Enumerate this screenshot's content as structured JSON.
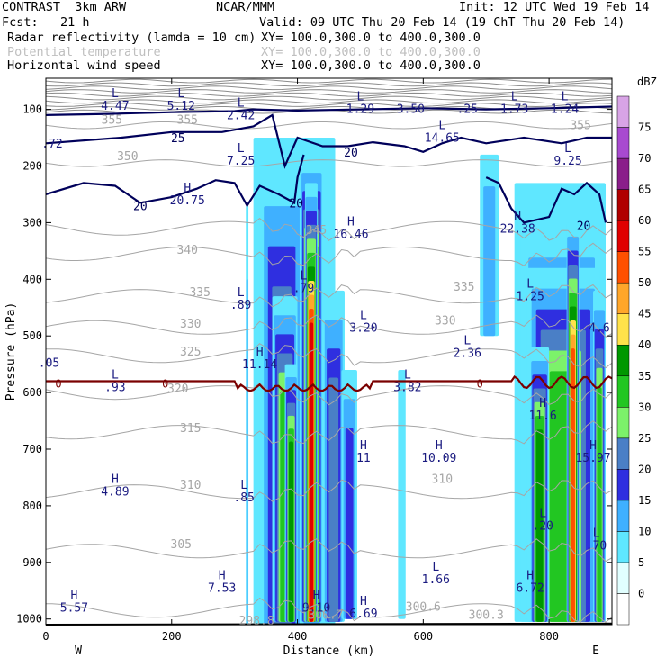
{
  "header": {
    "model": "CONTRAST  3km ARW",
    "org": "NCAR/MMM",
    "init": "Init: 12 UTC Wed 19 Feb 14",
    "fcst": "Fcst:   21 h",
    "valid": "Valid: 09 UTC Thu 20 Feb 14 (19 ChT Thu 20 Feb 14)",
    "field1": "Radar reflectivity (lamda = 10 cm)",
    "field1_xy": "XY= 100.0,300.0 to 400.0,300.0",
    "field2": "Potential temperature",
    "field2_xy": "XY= 100.0,300.0 to 400.0,300.0",
    "field3": "Horizontal wind speed",
    "field3_xy": "XY= 100.0,300.0 to 400.0,300.0"
  },
  "colors": {
    "wind_contour": "#00005a",
    "theta_contour": "#a6a6a6",
    "zero_line": "#7a0000",
    "ground": "#000000"
  },
  "chart_data": {
    "type": "heatmap",
    "xlabel": "Distance (km)",
    "ylabel": "Pressure (hPa)",
    "xlim": [
      0,
      900
    ],
    "ylim": [
      1010,
      45
    ],
    "x_ticks": [
      0,
      200,
      400,
      600,
      800
    ],
    "y_ticks": [
      100,
      200,
      300,
      400,
      500,
      600,
      700,
      800,
      900,
      1000
    ],
    "x_end_labels": {
      "left": "W",
      "right": "E"
    },
    "colorbar": {
      "unit": "dBZ",
      "levels": [
        0,
        5,
        10,
        15,
        20,
        25,
        30,
        35,
        40,
        45,
        50,
        55,
        60,
        65,
        70,
        75
      ],
      "colors": [
        "#ffffff",
        "#e1ffff",
        "#5fe7ff",
        "#3fb0ff",
        "#2f2fe0",
        "#4a7fc6",
        "#7cf26a",
        "#22c622",
        "#009800",
        "#ffe24a",
        "#ffa62a",
        "#ff5000",
        "#e00000",
        "#b00000",
        "#8a1e8a",
        "#a84ad0",
        "#d8a4e6"
      ]
    },
    "cells": [
      {
        "x": [
          318,
          322
        ],
        "p": [
          270,
          1010
        ],
        "dbz": 10
      },
      {
        "x": [
          330,
          460
        ],
        "p": [
          150,
          1010
        ],
        "dbz": 10
      },
      {
        "x": [
          340,
          410
        ],
        "p": [
          200,
          1010
        ],
        "dbz": 20
      },
      {
        "x": [
          360,
          400
        ],
        "p": [
          430,
          1005
        ],
        "dbz": 30
      },
      {
        "x": [
          380,
          400
        ],
        "p": [
          550,
          1005
        ],
        "dbz": 35
      },
      {
        "x": [
          405,
          440
        ],
        "p": [
          180,
          1005
        ],
        "dbz": 45
      },
      {
        "x": [
          412,
          432
        ],
        "p": [
          230,
          1005
        ],
        "dbz": 55
      },
      {
        "x": [
          440,
          475
        ],
        "p": [
          420,
          1005
        ],
        "dbz": 20
      },
      {
        "x": [
          470,
          495
        ],
        "p": [
          560,
          1000
        ],
        "dbz": 15
      },
      {
        "x": [
          560,
          572
        ],
        "p": [
          560,
          1000
        ],
        "dbz": 5
      },
      {
        "x": [
          690,
          720
        ],
        "p": [
          180,
          500
        ],
        "dbz": 10
      },
      {
        "x": [
          745,
          890
        ],
        "p": [
          230,
          1005
        ],
        "dbz": 10
      },
      {
        "x": [
          755,
          885
        ],
        "p": [
          300,
          1005
        ],
        "dbz": 20
      },
      {
        "x": [
          765,
          880
        ],
        "p": [
          380,
          1005
        ],
        "dbz": 30
      },
      {
        "x": [
          770,
          800
        ],
        "p": [
          520,
          1005
        ],
        "dbz": 35
      },
      {
        "x": [
          828,
          848
        ],
        "p": [
          300,
          1005
        ],
        "dbz": 50
      },
      {
        "x": [
          870,
          890
        ],
        "p": [
          420,
          1005
        ],
        "dbz": 30
      }
    ],
    "theta_contours": {
      "levels": [
        300,
        305,
        310,
        315,
        320,
        325,
        330,
        335,
        340,
        345,
        350,
        355
      ],
      "labels": [
        {
          "text": "300.6",
          "x": 600,
          "p": 985
        },
        {
          "text": "300.3",
          "x": 700,
          "p": 1000
        },
        {
          "text": "298.8",
          "x": 335,
          "p": 1010
        },
        {
          "text": "300.7",
          "x": 445,
          "p": 1000
        },
        {
          "text": "305",
          "x": 215,
          "p": 875
        },
        {
          "text": "310",
          "x": 230,
          "p": 770
        },
        {
          "text": "310",
          "x": 630,
          "p": 760
        },
        {
          "text": "315",
          "x": 230,
          "p": 670
        },
        {
          "text": "320",
          "x": 210,
          "p": 600
        },
        {
          "text": "325",
          "x": 230,
          "p": 535
        },
        {
          "text": "330",
          "x": 230,
          "p": 485
        },
        {
          "text": "330",
          "x": 635,
          "p": 480
        },
        {
          "text": "335",
          "x": 245,
          "p": 430
        },
        {
          "text": "335",
          "x": 665,
          "p": 420
        },
        {
          "text": "340",
          "x": 225,
          "p": 355
        },
        {
          "text": "345",
          "x": 430,
          "p": 320
        },
        {
          "text": "350",
          "x": 130,
          "p": 190
        },
        {
          "text": "355",
          "x": 105,
          "p": 125
        },
        {
          "text": "355",
          "x": 225,
          "p": 125
        },
        {
          "text": "355",
          "x": 850,
          "p": 135
        }
      ]
    },
    "zero_line_labels": [
      {
        "text": "0",
        "x": 20,
        "p": 585
      },
      {
        "text": "0",
        "x": 190,
        "p": 585
      },
      {
        "text": "0",
        "x": 690,
        "p": 585
      }
    ],
    "wind_contour_labels": [
      {
        "text": "25",
        "x": 210,
        "p": 150
      },
      {
        "text": "20",
        "x": 485,
        "p": 175
      },
      {
        "text": "20",
        "x": 150,
        "p": 270
      },
      {
        "text": "20",
        "x": 398,
        "p": 265
      },
      {
        "text": "20",
        "x": 855,
        "p": 305
      }
    ],
    "extrema": [
      {
        "type": "L",
        "value": "4.47",
        "x": 110,
        "p": 78
      },
      {
        "type": "L",
        "value": "5.12",
        "x": 215,
        "p": 78
      },
      {
        "type": "L",
        "value": "2.42",
        "x": 310,
        "p": 95
      },
      {
        "type": "L",
        "value": "1.29",
        "x": 500,
        "p": 84
      },
      {
        "type": "",
        "value": "3.50",
        "x": 580,
        "p": 84
      },
      {
        "type": "",
        "value": ".25",
        "x": 670,
        "p": 84
      },
      {
        "type": "L",
        "value": "1.73",
        "x": 745,
        "p": 84
      },
      {
        "type": "L",
        "value": "1.24",
        "x": 825,
        "p": 84
      },
      {
        "type": "",
        "value": ".72",
        "x": 10,
        "p": 145
      },
      {
        "type": "L",
        "value": "14.65",
        "x": 630,
        "p": 135
      },
      {
        "type": "L",
        "value": "9.25",
        "x": 830,
        "p": 175
      },
      {
        "type": "L",
        "value": "7.25",
        "x": 310,
        "p": 175
      },
      {
        "type": "H",
        "value": "20.75",
        "x": 225,
        "p": 245
      },
      {
        "type": "H",
        "value": "16.46",
        "x": 485,
        "p": 305
      },
      {
        "type": "H",
        "value": "22.38",
        "x": 750,
        "p": 295
      },
      {
        "type": "L",
        "value": ".89",
        "x": 310,
        "p": 430
      },
      {
        "type": "L",
        "value": ".79",
        "x": 410,
        "p": 400
      },
      {
        "type": "L",
        "value": "3.20",
        "x": 505,
        "p": 470
      },
      {
        "type": "L",
        "value": "1.25",
        "x": 770,
        "p": 415
      },
      {
        "type": "",
        "value": "4.6",
        "x": 880,
        "p": 470
      },
      {
        "type": "H",
        "value": "11.14",
        "x": 340,
        "p": 535
      },
      {
        "type": "L",
        "value": "2.36",
        "x": 670,
        "p": 515
      },
      {
        "type": "",
        "value": ".05",
        "x": 5,
        "p": 532
      },
      {
        "type": "L",
        "value": ".93",
        "x": 110,
        "p": 575
      },
      {
        "type": "L",
        "value": "3.82",
        "x": 575,
        "p": 575
      },
      {
        "type": "H",
        "value": "11.6",
        "x": 790,
        "p": 625
      },
      {
        "type": "H",
        "value": "11",
        "x": 505,
        "p": 700
      },
      {
        "type": "H",
        "value": "10.09",
        "x": 625,
        "p": 700
      },
      {
        "type": "H",
        "value": "15.97",
        "x": 870,
        "p": 700
      },
      {
        "type": "H",
        "value": "4.89",
        "x": 110,
        "p": 760
      },
      {
        "type": "L",
        "value": ".85",
        "x": 315,
        "p": 770
      },
      {
        "type": "L",
        "value": ".20",
        "x": 790,
        "p": 820
      },
      {
        "type": "L",
        "value": ".70",
        "x": 875,
        "p": 855
      },
      {
        "type": "L",
        "value": "1.66",
        "x": 620,
        "p": 915
      },
      {
        "type": "H",
        "value": "7.53",
        "x": 280,
        "p": 930
      },
      {
        "type": "H",
        "value": "6.72",
        "x": 770,
        "p": 930
      },
      {
        "type": "H",
        "value": "5.57",
        "x": 45,
        "p": 965
      },
      {
        "type": "H",
        "value": "9.10",
        "x": 430,
        "p": 965
      },
      {
        "type": "H",
        "value": "6.69",
        "x": 505,
        "p": 975
      }
    ]
  }
}
